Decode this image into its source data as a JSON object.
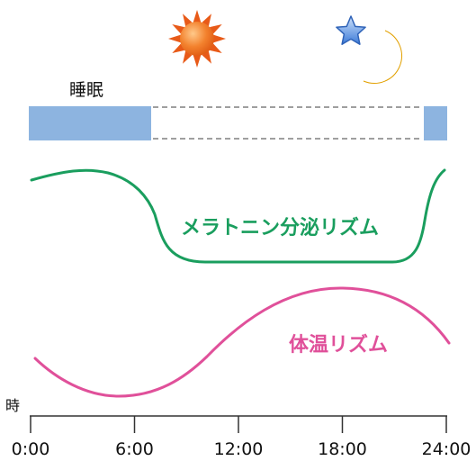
{
  "sleep_label": "睡眠",
  "melatonin_label": "メラトニン分泌リズム",
  "temperature_label": "体温リズム",
  "hour_label": "時",
  "time_ticks": [
    "0:00",
    "6:00",
    "12:00",
    "18:00",
    "24:00"
  ],
  "icons": {
    "day": "sun-icon",
    "night": [
      "star-icon",
      "crescent-moon-icon"
    ]
  },
  "colors": {
    "sleep_bar": "#8db4e0",
    "melatonin": "#1a9e5e",
    "temperature": "#e0509a",
    "sun": "#e85a18",
    "moon": "#f3b200",
    "star": "#3d7bd8"
  }
}
